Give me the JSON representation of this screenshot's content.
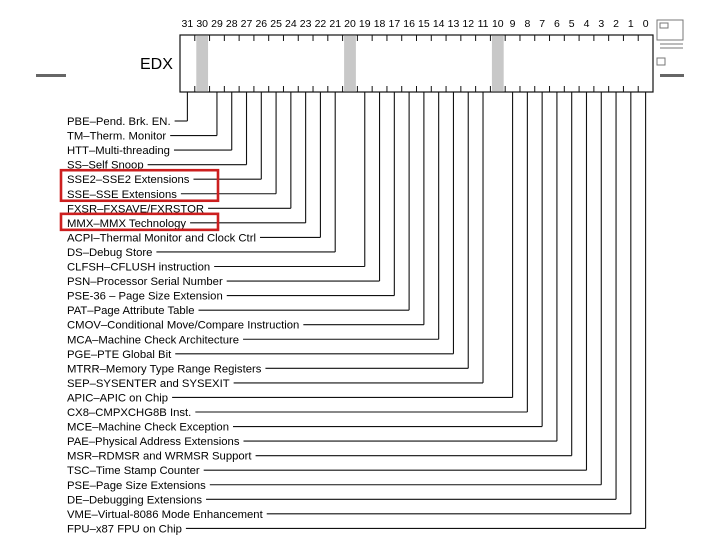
{
  "register": {
    "name": "EDX",
    "bit_labels": [
      "31",
      "30",
      "29",
      "28",
      "27",
      "26",
      "25",
      "24",
      "23",
      "22",
      "21",
      "20",
      "19",
      "18",
      "17",
      "16",
      "15",
      "14",
      "13",
      "12",
      "11",
      "10",
      "9",
      "8",
      "7",
      "6",
      "5",
      "4",
      "3",
      "2",
      "1",
      "0"
    ],
    "reserved_bits": [
      30,
      20,
      10
    ]
  },
  "flags": [
    {
      "bit": 31,
      "text": "PBE–Pend. Brk. EN.",
      "highlight": false
    },
    {
      "bit": 29,
      "text": "TM–Therm. Monitor",
      "highlight": false
    },
    {
      "bit": 28,
      "text": "HTT–Multi-threading",
      "highlight": false
    },
    {
      "bit": 27,
      "text": "SS–Self Snoop",
      "highlight": false
    },
    {
      "bit": 26,
      "text": "SSE2–SSE2 Extensions",
      "highlight": true
    },
    {
      "bit": 25,
      "text": "SSE–SSE Extensions",
      "highlight": true
    },
    {
      "bit": 24,
      "text": "FXSR–FXSAVE/FXRSTOR",
      "highlight": false
    },
    {
      "bit": 23,
      "text": "MMX–MMX Technology",
      "highlight": true
    },
    {
      "bit": 22,
      "text": "ACPI–Thermal Monitor and Clock Ctrl",
      "highlight": false
    },
    {
      "bit": 21,
      "text": "DS–Debug Store",
      "highlight": false
    },
    {
      "bit": 19,
      "text": "CLFSH–CFLUSH instruction",
      "highlight": false
    },
    {
      "bit": 18,
      "text": "PSN–Processor Serial Number",
      "highlight": false
    },
    {
      "bit": 17,
      "text": "PSE-36 – Page Size Extension",
      "highlight": false
    },
    {
      "bit": 16,
      "text": "PAT–Page Attribute Table",
      "highlight": false
    },
    {
      "bit": 15,
      "text": "CMOV–Conditional Move/Compare Instruction",
      "highlight": false
    },
    {
      "bit": 14,
      "text": "MCA–Machine Check Architecture",
      "highlight": false
    },
    {
      "bit": 13,
      "text": "PGE–PTE Global Bit",
      "highlight": false
    },
    {
      "bit": 12,
      "text": "MTRR–Memory Type Range Registers",
      "highlight": false
    },
    {
      "bit": 11,
      "text": "SEP–SYSENTER and SYSEXIT",
      "highlight": false
    },
    {
      "bit": 9,
      "text": "APIC–APIC on Chip",
      "highlight": false
    },
    {
      "bit": 8,
      "text": "CX8–CMPXCHG8B Inst.",
      "highlight": false
    },
    {
      "bit": 7,
      "text": "MCE–Machine Check Exception",
      "highlight": false
    },
    {
      "bit": 6,
      "text": "PAE–Physical Address Extensions",
      "highlight": false
    },
    {
      "bit": 5,
      "text": "MSR–RDMSR and WRMSR Support",
      "highlight": false
    },
    {
      "bit": 4,
      "text": "TSC–Time Stamp Counter",
      "highlight": false
    },
    {
      "bit": 3,
      "text": "PSE–Page Size Extensions",
      "highlight": false
    },
    {
      "bit": 2,
      "text": "DE–Debugging Extensions",
      "highlight": false
    },
    {
      "bit": 1,
      "text": "VME–Virtual-8086 Mode Enhancement",
      "highlight": false
    },
    {
      "bit": 0,
      "text": "FPU–x87 FPU on Chip",
      "highlight": false
    }
  ],
  "colors": {
    "highlight_box": "#cc1f1f",
    "reserved_fill": "#c8c8c8",
    "line": "#111111",
    "slide_rule": "#666666"
  }
}
